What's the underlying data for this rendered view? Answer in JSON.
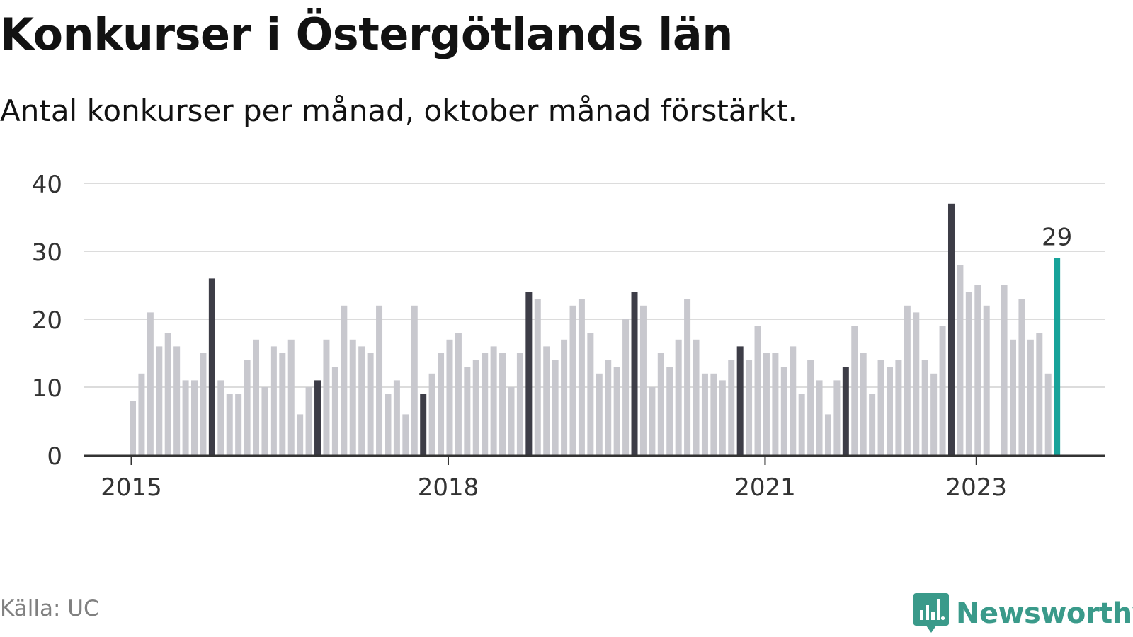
{
  "title": "Konkurser i Östergötlands län",
  "subtitle": "Antal konkurser per månad, oktober månad förstärkt.",
  "source": "Källa: UC",
  "brand": {
    "name": "Newsworthy",
    "logo_icon": "bar-chart-speech-bubble-icon"
  },
  "colors": {
    "regular_bar": "#c8c8ce",
    "october_bar": "#3d3d47",
    "latest_bar": "#17a39a",
    "gridline": "#dcdcdc",
    "baseline": "#333333",
    "brand": "#3a9a8a"
  },
  "chart_data": {
    "type": "bar",
    "title": "Konkurser i Östergötlands län",
    "subtitle": "Antal konkurser per månad, oktober månad förstärkt.",
    "xlabel": "",
    "ylabel": "",
    "ylim": [
      0,
      40
    ],
    "yticks": [
      0,
      10,
      20,
      30,
      40
    ],
    "grid": true,
    "xticks": [
      {
        "label": "2015",
        "index": 0
      },
      {
        "label": "2018",
        "index": 36
      },
      {
        "label": "2021",
        "index": 72
      },
      {
        "label": "2023",
        "index": 96
      }
    ],
    "start_month": "2015-01",
    "end_month": "2023-10",
    "highlight_month": "oktober",
    "latest_label": "29",
    "values": [
      8,
      12,
      21,
      16,
      18,
      16,
      11,
      11,
      15,
      26,
      11,
      9,
      9,
      14,
      17,
      10,
      16,
      15,
      17,
      6,
      10,
      11,
      17,
      13,
      22,
      17,
      16,
      15,
      22,
      9,
      11,
      6,
      22,
      9,
      12,
      15,
      17,
      18,
      13,
      14,
      15,
      16,
      15,
      10,
      15,
      24,
      23,
      16,
      14,
      17,
      22,
      23,
      18,
      12,
      14,
      13,
      20,
      24,
      22,
      10,
      15,
      13,
      17,
      23,
      17,
      12,
      12,
      11,
      14,
      16,
      14,
      19,
      15,
      15,
      13,
      16,
      9,
      14,
      11,
      6,
      11,
      13,
      19,
      15,
      9,
      14,
      13,
      14,
      22,
      21,
      14,
      12,
      19,
      37,
      28,
      24,
      25,
      22,
      0,
      25,
      17,
      23,
      17,
      18,
      12,
      29
    ]
  }
}
